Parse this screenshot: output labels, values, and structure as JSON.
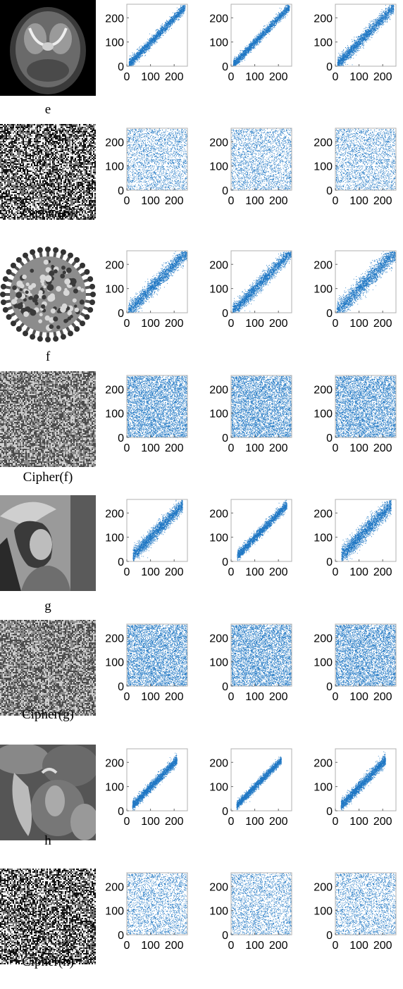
{
  "figure": {
    "rows": [
      {
        "caption": "e",
        "image_kind": "brain-mri",
        "plot_kind": "correlated-tight",
        "spread": [
          12,
          11,
          16
        ]
      },
      {
        "caption": "Cipher(e)",
        "image_kind": "noise-bw",
        "plot_kind": "uniform",
        "density": "medium"
      },
      {
        "caption": "f",
        "image_kind": "virus",
        "plot_kind": "correlated-wide",
        "spread": [
          20,
          18,
          24
        ]
      },
      {
        "caption": "Cipher(f)",
        "image_kind": "noise-gray",
        "plot_kind": "uniform",
        "density": "dense"
      },
      {
        "caption": "g",
        "image_kind": "lena",
        "plot_kind": "correlated-mid",
        "spread": [
          18,
          12,
          22
        ]
      },
      {
        "caption": "Cipher(g)",
        "image_kind": "noise-gray",
        "plot_kind": "uniform",
        "density": "dense"
      },
      {
        "caption": "h",
        "image_kind": "peppers",
        "plot_kind": "correlated-mid",
        "spread": [
          13,
          11,
          15
        ]
      },
      {
        "caption": "Cipher(h)",
        "image_kind": "noise-bw",
        "plot_kind": "uniform",
        "density": "medium"
      }
    ]
  },
  "chart_data": {
    "type": "scatter",
    "subplot_columns": [
      "horizontal",
      "vertical",
      "diagonal"
    ],
    "xlim": [
      0,
      256
    ],
    "ylim": [
      0,
      256
    ],
    "x_ticks": [
      0,
      100,
      200
    ],
    "y_ticks": [
      0,
      100,
      200
    ],
    "grid": false,
    "point_color": "#1f77c4"
  }
}
